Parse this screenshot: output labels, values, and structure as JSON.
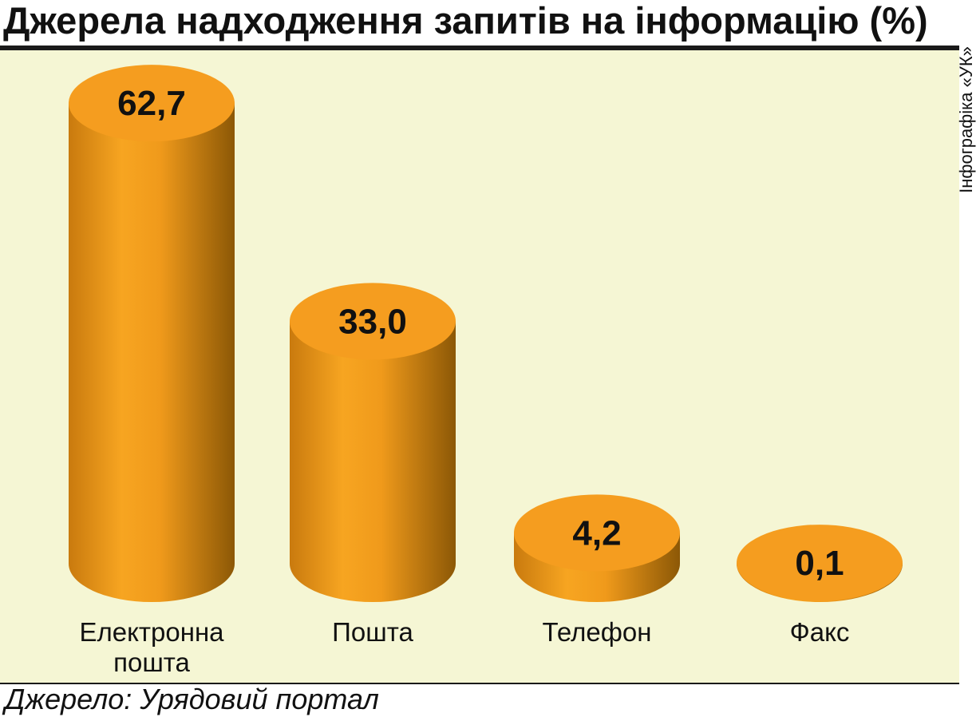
{
  "title": "Джерела надходження запитів на інформацію (%)",
  "credit": "Інфографіка «УК»",
  "source": "Джерело: Урядовий портал",
  "colors": {
    "panel": "#f5f6d4",
    "cylinder_top": "#f59d1f",
    "cylinder_light": "#f7a521",
    "cylinder_dark": "#8c5806",
    "rule": "#1a1a1a"
  },
  "chart_data": {
    "type": "bar",
    "style": "3d-cylinder",
    "title": "Джерела надходження запитів на інформацію (%)",
    "categories": [
      [
        "Електронна",
        "пошта"
      ],
      [
        "Пошта"
      ],
      [
        "Телефон"
      ],
      [
        "Факс"
      ]
    ],
    "values": [
      62.7,
      33.0,
      4.2,
      0.1
    ],
    "value_labels": [
      "62,7",
      "33,0",
      "4,2",
      "0,1"
    ],
    "unit": "%",
    "grid": false,
    "legend": "none"
  }
}
